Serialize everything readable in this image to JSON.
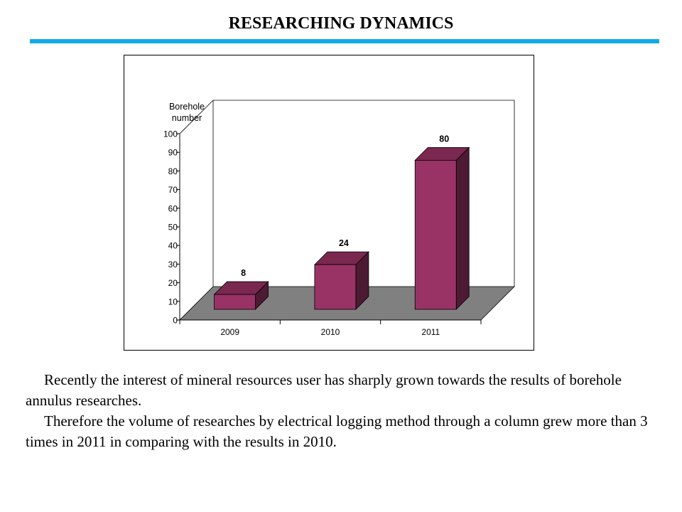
{
  "slide": {
    "title": "RESEARCHING DYNAMICS",
    "rule_color": "#12a9e4",
    "paragraphs": [
      "Recently the interest of mineral resources user has sharply grown towards the results of borehole annulus researches.",
      "Therefore the volume of researches by electrical logging method through a column grew more than 3 times in 2011 in comparing with the results in 2010."
    ]
  },
  "chart_data": {
    "type": "bar",
    "style": "3d-column",
    "title": "",
    "xlabel": "",
    "ylabel": "Borehole number",
    "categories": [
      "2009",
      "2010",
      "2011"
    ],
    "values": [
      8,
      24,
      80
    ],
    "data_labels": [
      "8",
      "24",
      "80"
    ],
    "ylim": [
      0,
      100
    ],
    "yticks": [
      0,
      10,
      20,
      30,
      40,
      50,
      60,
      70,
      80,
      90,
      100
    ],
    "grid": false,
    "legend": "none",
    "colors": {
      "bar_front": "#993366",
      "bar_top": "#7a2850",
      "bar_side": "#4d1a33",
      "floor": "#808080"
    }
  }
}
